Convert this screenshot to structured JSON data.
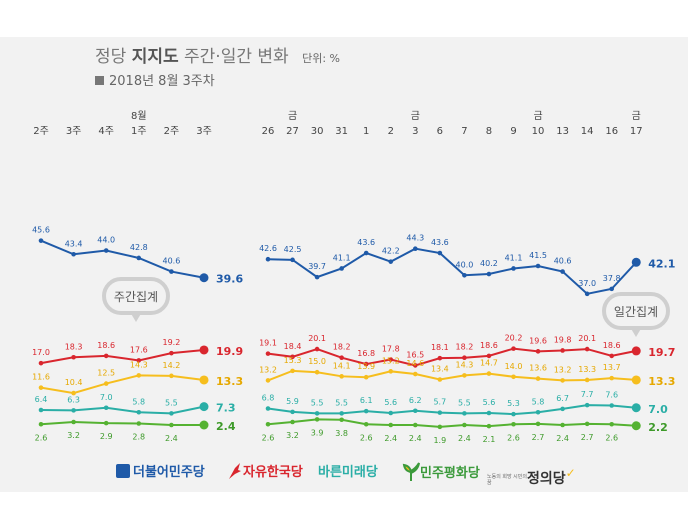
{
  "header": {
    "title_prefix": "정당",
    "title_bold": "지지도",
    "title_suffix": "주간·일간 변화",
    "unit": "단위: %",
    "subtitle": "2018년 8월 3주차"
  },
  "legend": {
    "minju": "더불어민주당",
    "hankook": "자유한국당",
    "bareun": "바른미래당",
    "pyeonghwa": "민주평화당",
    "jeongui": "정의당",
    "jeongui_small": "노동의 희망 시민의 꿈"
  },
  "badges": {
    "weekly": "주간집계",
    "daily": "일간집계"
  },
  "colors": {
    "minju": "#1f5aa8",
    "hankook": "#d9262e",
    "bareun": "#f6be1e",
    "pyeonghwa": "#2aaea6",
    "jeongui": "#55b232",
    "panel": "#f2f2f2"
  },
  "chart_data": [
    {
      "type": "line",
      "name": "주간집계",
      "categories": [
        "2주",
        "3주",
        "4주",
        "1주",
        "2주",
        "3주"
      ],
      "month_marks": [
        {
          "index": 3,
          "label": "8월"
        }
      ],
      "series": [
        {
          "name": "더불어민주당",
          "values": [
            45.6,
            43.4,
            44.0,
            42.8,
            40.6,
            39.6
          ]
        },
        {
          "name": "자유한국당",
          "values": [
            17.0,
            18.3,
            18.6,
            17.6,
            19.2,
            19.9
          ]
        },
        {
          "name": "바른미래당",
          "values": [
            11.6,
            10.4,
            12.5,
            14.3,
            14.2,
            13.3
          ]
        },
        {
          "name": "민주평화당",
          "values": [
            6.4,
            6.3,
            7.0,
            5.8,
            5.5,
            7.3
          ]
        },
        {
          "name": "정의당",
          "values": [
            2.6,
            3.2,
            2.9,
            2.8,
            2.4,
            2.4
          ]
        }
      ]
    },
    {
      "type": "line",
      "name": "일간집계",
      "categories": [
        "26",
        "27",
        "30",
        "31",
        "1",
        "2",
        "3",
        "6",
        "7",
        "8",
        "9",
        "10",
        "13",
        "14",
        "16",
        "17"
      ],
      "day_marks": [
        {
          "index": 1,
          "label": "금"
        },
        {
          "index": 6,
          "label": "금"
        },
        {
          "index": 11,
          "label": "금"
        },
        {
          "index": 15,
          "label": "금"
        }
      ],
      "series": [
        {
          "name": "더불어민주당",
          "values": [
            42.6,
            42.5,
            39.7,
            41.1,
            43.6,
            42.2,
            44.3,
            43.6,
            40.0,
            40.2,
            41.1,
            41.5,
            40.6,
            37.0,
            37.8,
            42.1
          ]
        },
        {
          "name": "자유한국당",
          "values": [
            19.1,
            18.4,
            20.1,
            18.2,
            16.8,
            17.8,
            16.5,
            18.1,
            18.2,
            18.6,
            20.2,
            19.6,
            19.8,
            20.1,
            18.6,
            19.7
          ]
        },
        {
          "name": "바른미래당",
          "values": [
            13.2,
            15.3,
            15.0,
            14.1,
            13.9,
            15.2,
            14.6,
            13.4,
            14.3,
            14.7,
            14.0,
            13.6,
            13.2,
            13.3,
            13.7,
            13.3
          ]
        },
        {
          "name": "민주평화당",
          "values": [
            6.8,
            5.9,
            5.5,
            5.5,
            6.1,
            5.6,
            6.2,
            5.7,
            5.5,
            5.6,
            5.3,
            5.8,
            6.7,
            7.7,
            7.6,
            7.0
          ]
        },
        {
          "name": "정의당",
          "values": [
            2.6,
            3.2,
            3.9,
            3.8,
            2.6,
            2.4,
            2.4,
            1.9,
            2.4,
            2.1,
            2.6,
            2.7,
            2.4,
            2.7,
            2.6,
            2.2
          ]
        }
      ]
    }
  ]
}
